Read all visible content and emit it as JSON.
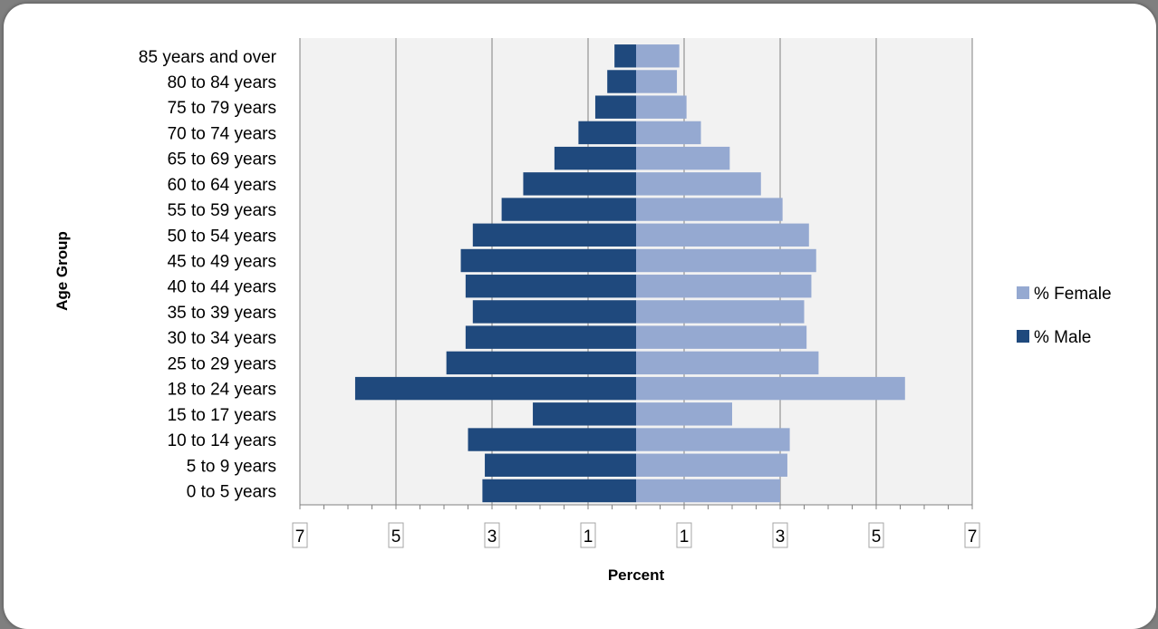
{
  "chart_data": {
    "type": "bar",
    "orientation": "horizontal",
    "layout": "population-pyramid",
    "categories": [
      "0 to 5 years",
      "5 to 9 years",
      "10 to 14 years",
      "15 to 17 years",
      "18 to 24 years",
      "25 to 29 years",
      "30 to 34 years",
      "35 to 39 years",
      "40 to 44 years",
      "45 to 49 years",
      "50 to 54 years",
      "55 to 59 years",
      "60 to 64 years",
      "65 to 69 years",
      "70 to 74 years",
      "75 to 79 years",
      "80 to 84 years",
      "85 years and over"
    ],
    "series": [
      {
        "name": "% Male",
        "side": "left",
        "color": "#1f497d",
        "values": [
          3.2,
          3.15,
          3.5,
          2.15,
          5.85,
          3.95,
          3.55,
          3.4,
          3.55,
          3.65,
          3.4,
          2.8,
          2.35,
          1.7,
          1.2,
          0.85,
          0.6,
          0.45
        ]
      },
      {
        "name": "% Female",
        "side": "right",
        "color": "#95a9d1",
        "values": [
          3.0,
          3.15,
          3.2,
          2.0,
          5.6,
          3.8,
          3.55,
          3.5,
          3.65,
          3.75,
          3.6,
          3.05,
          2.6,
          1.95,
          1.35,
          1.05,
          0.85,
          0.9
        ]
      }
    ],
    "xticks": [
      "7",
      "5",
      "3",
      "1",
      "1",
      "3",
      "5",
      "7"
    ],
    "xlim": [
      -7,
      7
    ],
    "xlabel": "Percent",
    "ylabel": "Age Group",
    "legend_entries": [
      "% Female",
      "% Male"
    ],
    "legend_position": "right",
    "grid": true,
    "plot_background": "#f2f2f2"
  }
}
